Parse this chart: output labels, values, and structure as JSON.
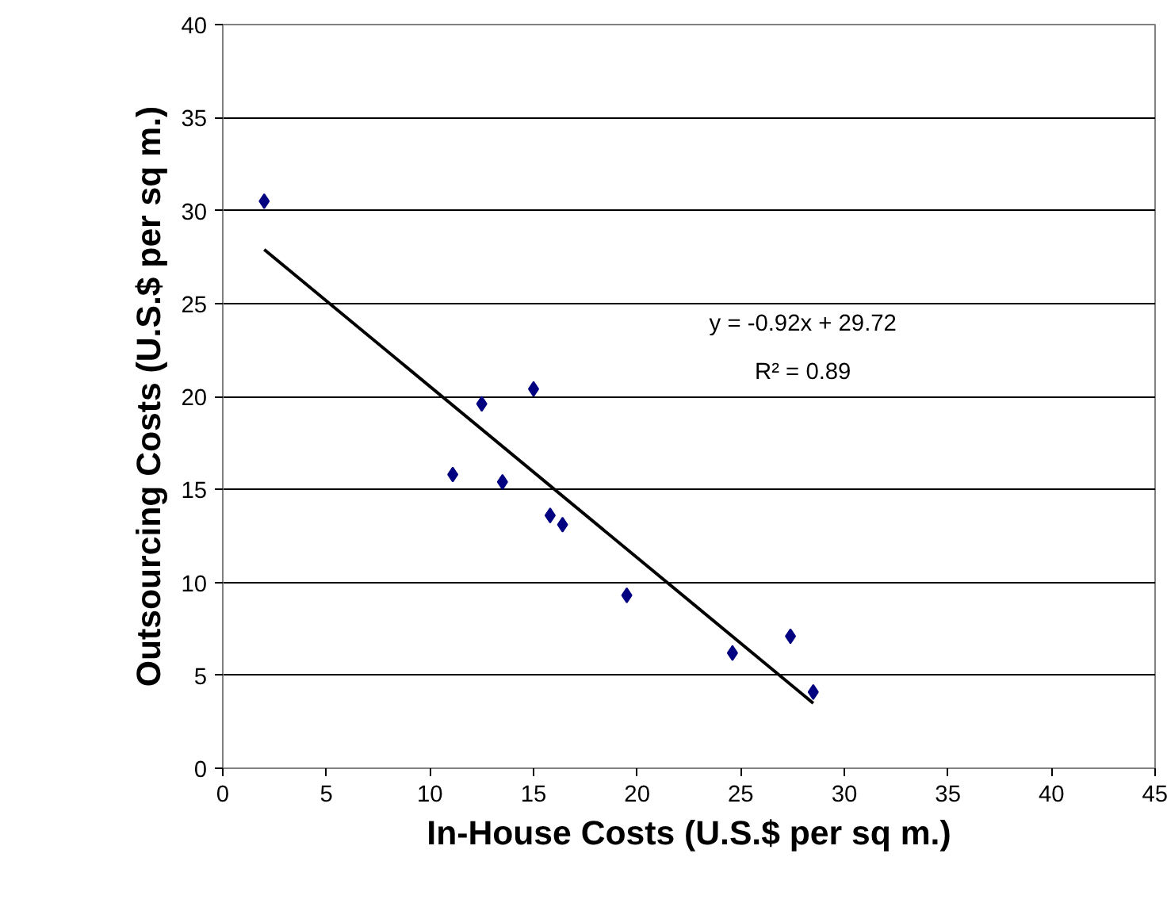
{
  "chart_data": {
    "type": "scatter",
    "xlabel": "In-House Costs (U.S.$ per sq m.)",
    "ylabel": "Outsourcing Costs (U.S.$ per sq m.)",
    "xlim": [
      0,
      45
    ],
    "ylim": [
      0,
      40
    ],
    "xticks": [
      0,
      5,
      10,
      15,
      20,
      25,
      30,
      35,
      40,
      45
    ],
    "yticks": [
      0,
      5,
      10,
      15,
      20,
      25,
      30,
      35,
      40
    ],
    "grid": "y",
    "series": [
      {
        "color": "#000080",
        "marker": "diamond",
        "x": [
          2.0,
          11.1,
          12.5,
          13.5,
          15.0,
          15.8,
          16.4,
          19.5,
          24.6,
          27.4,
          28.5
        ],
        "values": [
          30.5,
          15.8,
          19.6,
          15.4,
          20.4,
          13.6,
          13.1,
          9.3,
          6.2,
          7.1,
          4.1
        ]
      },
      {
        "type": "line",
        "color": "#000000",
        "line_style": "solid",
        "marker": "none",
        "x": [
          2.0,
          28.5
        ],
        "values": [
          27.9,
          3.5
        ]
      }
    ],
    "annotations": [
      "y = -0.92x + 29.72",
      "R² = 0.89"
    ]
  }
}
